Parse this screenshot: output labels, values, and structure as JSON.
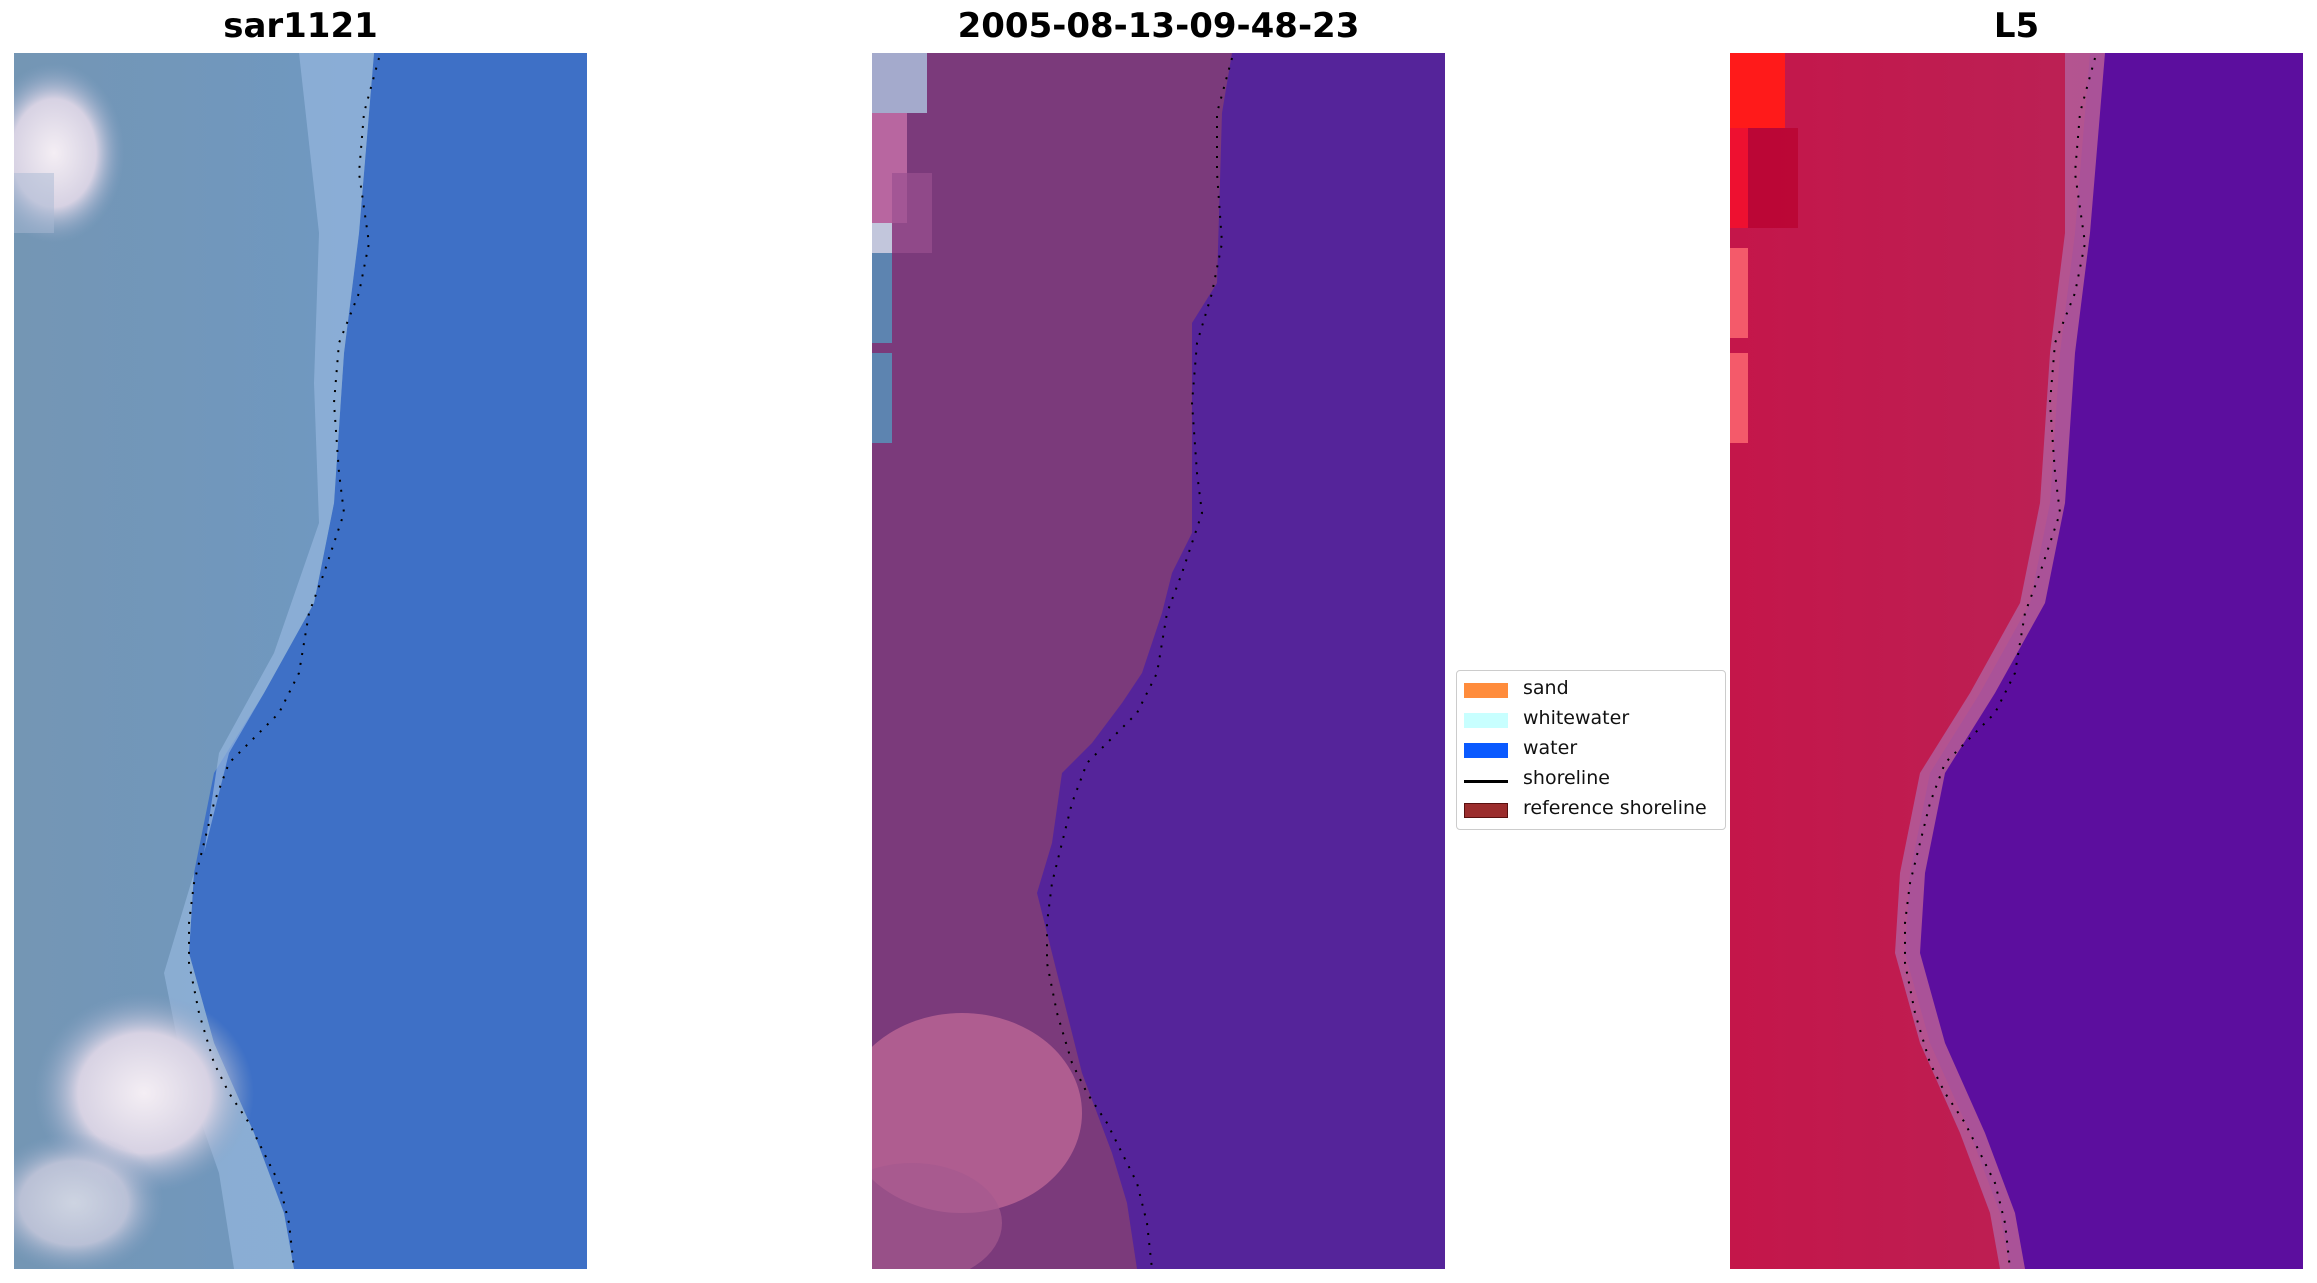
{
  "panels": [
    {
      "title": "sar1121",
      "image": "rgb-satellite-view-coastline"
    },
    {
      "title": "2005-08-13-09-48-23",
      "image": "classified-image-overlay"
    },
    {
      "title": "L5",
      "image": "mndwi-index-heatmap"
    }
  ],
  "legend": {
    "items": [
      {
        "label": "sand",
        "color": "#ff8c3c",
        "kind": "patch"
      },
      {
        "label": "whitewater",
        "color": "#c8ffff",
        "kind": "patch"
      },
      {
        "label": "water",
        "color": "#0a5aff",
        "kind": "patch"
      },
      {
        "label": "shoreline",
        "color": "#000000",
        "kind": "line"
      },
      {
        "label": "reference shoreline",
        "color": "#9b2d2d",
        "kind": "patch"
      }
    ]
  },
  "colors": {
    "rgb_land": "#6a93b7",
    "rgb_water": "#3b6fc6",
    "rgb_bright": "#e6e0ea",
    "class_land": "#7a3a78",
    "class_water": "#55239a",
    "class_pink": "#b0608f",
    "index_land": "#c11a4a",
    "index_water": "#5a0c9e",
    "index_red": "#ff1a1a"
  }
}
